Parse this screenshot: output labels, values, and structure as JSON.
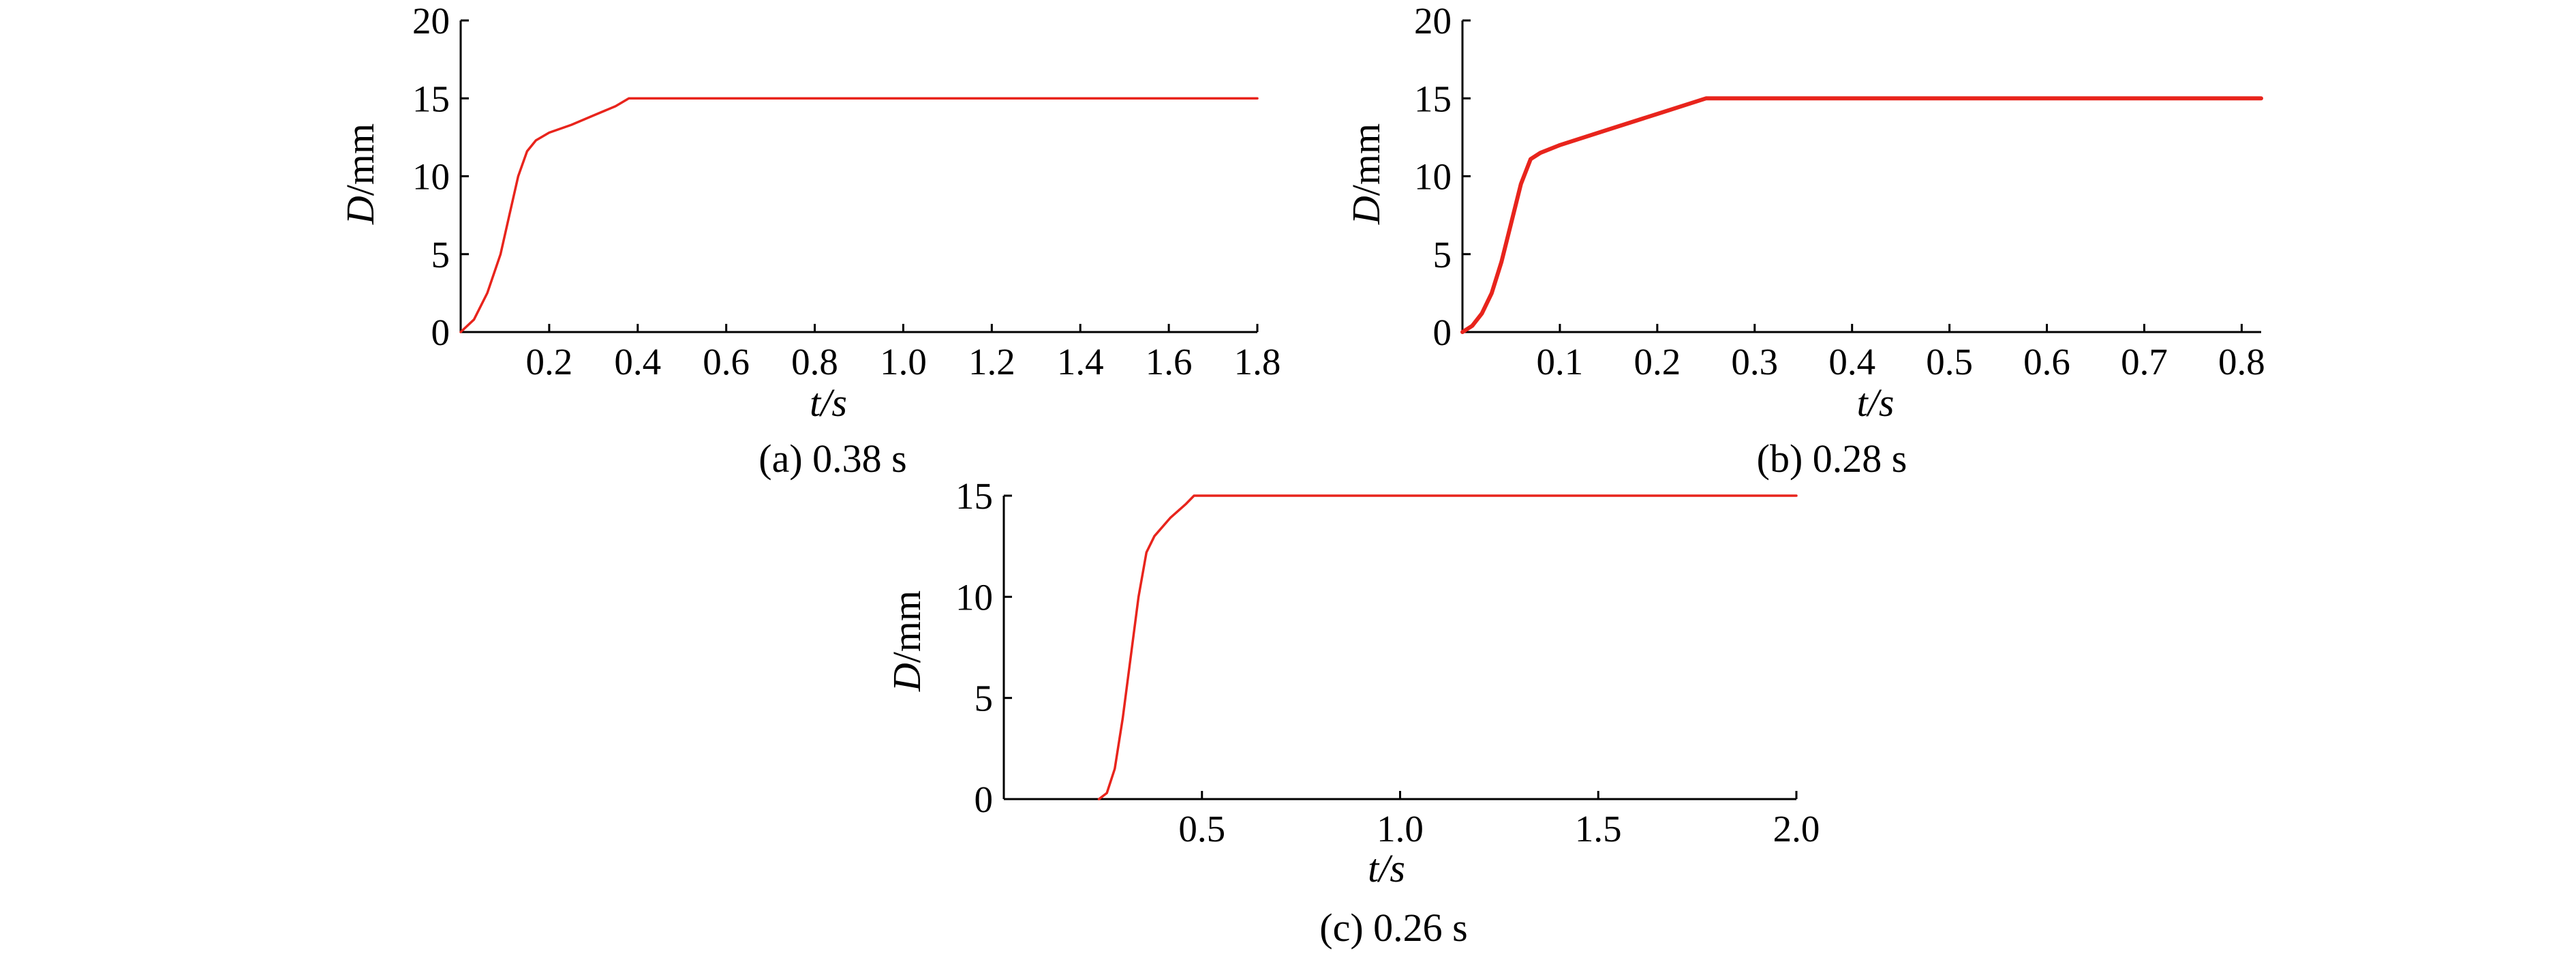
{
  "colors": {
    "series": "#e8241c",
    "axis": "#000000"
  },
  "chart_data": [
    {
      "type": "line",
      "caption": "(a) 0.38 s",
      "xlabel_var": "t",
      "xlabel_unit": "/s",
      "ylabel_var": "D",
      "ylabel_unit": "/mm",
      "xlim": [
        0,
        1.8
      ],
      "ylim": [
        0,
        20
      ],
      "xticks": [
        0.2,
        0.4,
        0.6,
        0.8,
        1.0,
        1.2,
        1.4,
        1.6,
        1.8
      ],
      "xtick_labels": [
        "0.2",
        "0.4",
        "0.6",
        "0.8",
        "1.0",
        "1.2",
        "1.4",
        "1.6",
        "1.8"
      ],
      "yticks": [
        0,
        5,
        10,
        15,
        20
      ],
      "ytick_labels": [
        "0",
        "5",
        "10",
        "15",
        "20"
      ],
      "series": [
        {
          "x": [
            0,
            0.03,
            0.06,
            0.09,
            0.11,
            0.13,
            0.15,
            0.17,
            0.2,
            0.25,
            0.3,
            0.35,
            0.38,
            0.4,
            1.8
          ],
          "y": [
            0,
            0.8,
            2.5,
            5.0,
            7.5,
            10.0,
            11.6,
            12.3,
            12.8,
            13.3,
            13.9,
            14.5,
            15.0,
            15.0,
            15.0
          ]
        }
      ]
    },
    {
      "type": "line",
      "caption": "(b) 0.28 s",
      "xlabel_var": "t",
      "xlabel_unit": "/s",
      "ylabel_var": "D",
      "ylabel_unit": "/mm",
      "xlim": [
        0,
        0.82
      ],
      "ylim": [
        0,
        20
      ],
      "xticks": [
        0.1,
        0.2,
        0.3,
        0.4,
        0.5,
        0.6,
        0.7,
        0.8
      ],
      "xtick_labels": [
        "0.1",
        "0.2",
        "0.3",
        "0.4",
        "0.5",
        "0.6",
        "0.7",
        "0.8"
      ],
      "yticks": [
        0,
        5,
        10,
        15,
        20
      ],
      "ytick_labels": [
        "0",
        "5",
        "10",
        "15",
        "20"
      ],
      "series": [
        {
          "x": [
            0,
            0.01,
            0.02,
            0.03,
            0.04,
            0.05,
            0.06,
            0.07,
            0.08,
            0.1,
            0.15,
            0.2,
            0.25,
            0.82
          ],
          "y": [
            0,
            0.4,
            1.2,
            2.5,
            4.5,
            7.0,
            9.5,
            11.1,
            11.5,
            12.0,
            13.0,
            14.0,
            15.0,
            15.0
          ]
        }
      ]
    },
    {
      "type": "line",
      "caption": "(c) 0.26 s",
      "xlabel_var": "t",
      "xlabel_unit": "/s",
      "ylabel_var": "D",
      "ylabel_unit": "/mm",
      "xlim": [
        0,
        2.0
      ],
      "ylim": [
        0,
        15
      ],
      "xticks": [
        0.5,
        1.0,
        1.5,
        2.0
      ],
      "xtick_labels": [
        "0.5",
        "1.0",
        "1.5",
        "2.0"
      ],
      "yticks": [
        0,
        5,
        10,
        15
      ],
      "ytick_labels": [
        "0",
        "5",
        "10",
        "15"
      ],
      "series": [
        {
          "x": [
            0.24,
            0.26,
            0.28,
            0.3,
            0.32,
            0.34,
            0.36,
            0.38,
            0.42,
            0.46,
            0.48,
            0.52,
            2.0
          ],
          "y": [
            0,
            0.3,
            1.5,
            4.0,
            7.0,
            10.0,
            12.2,
            13.0,
            13.9,
            14.6,
            15.0,
            15.0,
            15.0
          ]
        }
      ]
    }
  ]
}
